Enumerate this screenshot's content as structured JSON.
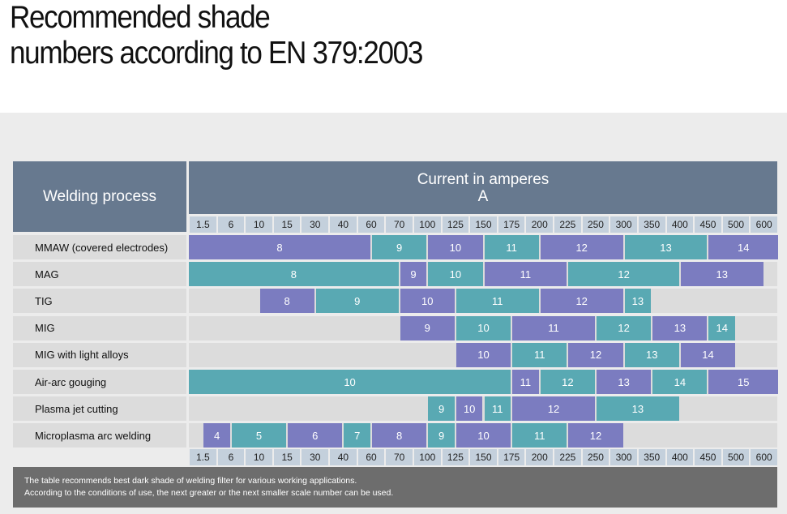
{
  "title": {
    "line1": "Recommended shade",
    "line2": "numbers according to EN 379:2003"
  },
  "table": {
    "process_header": "Welding process",
    "current_header_line1": "Current in amperes",
    "current_header_line2": "A",
    "scale": [
      "1.5",
      "6",
      "10",
      "15",
      "30",
      "40",
      "60",
      "70",
      "100",
      "125",
      "150",
      "175",
      "200",
      "225",
      "250",
      "300",
      "350",
      "400",
      "450",
      "500",
      "600"
    ],
    "colors": {
      "purple": "#7b7cc0",
      "teal": "#59a9b3",
      "row_bg": "#dcdcdc",
      "header": "#67798f",
      "scale_bg": "#c4d0dc"
    },
    "rows": [
      {
        "label": "MMAW (covered electrodes)",
        "segments": [
          {
            "shade": "8",
            "from": 0,
            "to": 6.5,
            "color": "purple"
          },
          {
            "shade": "9",
            "from": 6.5,
            "to": 8.5,
            "color": "teal"
          },
          {
            "shade": "10",
            "from": 8.5,
            "to": 10.5,
            "color": "purple"
          },
          {
            "shade": "11",
            "from": 10.5,
            "to": 12.5,
            "color": "teal"
          },
          {
            "shade": "12",
            "from": 12.5,
            "to": 15.5,
            "color": "purple"
          },
          {
            "shade": "13",
            "from": 15.5,
            "to": 18.5,
            "color": "teal"
          },
          {
            "shade": "14",
            "from": 18.5,
            "to": 21,
            "color": "purple"
          }
        ]
      },
      {
        "label": "MAG",
        "segments": [
          {
            "shade": "8",
            "from": 0,
            "to": 7.5,
            "color": "teal"
          },
          {
            "shade": "9",
            "from": 7.5,
            "to": 8.5,
            "color": "purple"
          },
          {
            "shade": "10",
            "from": 8.5,
            "to": 10.5,
            "color": "teal"
          },
          {
            "shade": "11",
            "from": 10.5,
            "to": 13.5,
            "color": "purple"
          },
          {
            "shade": "12",
            "from": 13.5,
            "to": 17.5,
            "color": "teal"
          },
          {
            "shade": "13",
            "from": 17.5,
            "to": 20.5,
            "color": "purple"
          }
        ]
      },
      {
        "label": "TIG",
        "segments": [
          {
            "shade": "8",
            "from": 2.5,
            "to": 4.5,
            "color": "purple"
          },
          {
            "shade": "9",
            "from": 4.5,
            "to": 7.5,
            "color": "teal"
          },
          {
            "shade": "10",
            "from": 7.5,
            "to": 9.5,
            "color": "purple"
          },
          {
            "shade": "11",
            "from": 9.5,
            "to": 12.5,
            "color": "teal"
          },
          {
            "shade": "12",
            "from": 12.5,
            "to": 15.5,
            "color": "purple"
          },
          {
            "shade": "13",
            "from": 15.5,
            "to": 16.5,
            "color": "teal"
          }
        ]
      },
      {
        "label": "MIG",
        "segments": [
          {
            "shade": "9",
            "from": 7.5,
            "to": 9.5,
            "color": "purple"
          },
          {
            "shade": "10",
            "from": 9.5,
            "to": 11.5,
            "color": "teal"
          },
          {
            "shade": "11",
            "from": 11.5,
            "to": 14.5,
            "color": "purple"
          },
          {
            "shade": "12",
            "from": 14.5,
            "to": 16.5,
            "color": "teal"
          },
          {
            "shade": "13",
            "from": 16.5,
            "to": 18.5,
            "color": "purple"
          },
          {
            "shade": "14",
            "from": 18.5,
            "to": 19.5,
            "color": "teal"
          }
        ]
      },
      {
        "label": "MIG with light alloys",
        "segments": [
          {
            "shade": "10",
            "from": 9.5,
            "to": 11.5,
            "color": "purple"
          },
          {
            "shade": "11",
            "from": 11.5,
            "to": 13.5,
            "color": "teal"
          },
          {
            "shade": "12",
            "from": 13.5,
            "to": 15.5,
            "color": "purple"
          },
          {
            "shade": "13",
            "from": 15.5,
            "to": 17.5,
            "color": "teal"
          },
          {
            "shade": "14",
            "from": 17.5,
            "to": 19.5,
            "color": "purple"
          }
        ]
      },
      {
        "label": "Air-arc gouging",
        "segments": [
          {
            "shade": "10",
            "from": 0,
            "to": 11.5,
            "color": "teal"
          },
          {
            "shade": "11",
            "from": 11.5,
            "to": 12.5,
            "color": "purple"
          },
          {
            "shade": "12",
            "from": 12.5,
            "to": 14.5,
            "color": "teal"
          },
          {
            "shade": "13",
            "from": 14.5,
            "to": 16.5,
            "color": "purple"
          },
          {
            "shade": "14",
            "from": 16.5,
            "to": 18.5,
            "color": "teal"
          },
          {
            "shade": "15",
            "from": 18.5,
            "to": 21,
            "color": "purple"
          }
        ]
      },
      {
        "label": "Plasma jet cutting",
        "segments": [
          {
            "shade": "9",
            "from": 8.5,
            "to": 9.5,
            "color": "teal"
          },
          {
            "shade": "10",
            "from": 9.5,
            "to": 10.5,
            "color": "purple"
          },
          {
            "shade": "11",
            "from": 10.5,
            "to": 11.5,
            "color": "teal"
          },
          {
            "shade": "12",
            "from": 11.5,
            "to": 14.5,
            "color": "purple"
          },
          {
            "shade": "13",
            "from": 14.5,
            "to": 17.5,
            "color": "teal"
          }
        ]
      },
      {
        "label": "Microplasma arc welding",
        "segments": [
          {
            "shade": "4",
            "from": 0.5,
            "to": 1.5,
            "color": "purple"
          },
          {
            "shade": "5",
            "from": 1.5,
            "to": 3.5,
            "color": "teal"
          },
          {
            "shade": "6",
            "from": 3.5,
            "to": 5.5,
            "color": "purple"
          },
          {
            "shade": "7",
            "from": 5.5,
            "to": 6.5,
            "color": "teal"
          },
          {
            "shade": "8",
            "from": 6.5,
            "to": 8.5,
            "color": "purple"
          },
          {
            "shade": "9",
            "from": 8.5,
            "to": 9.5,
            "color": "teal"
          },
          {
            "shade": "10",
            "from": 9.5,
            "to": 11.5,
            "color": "purple"
          },
          {
            "shade": "11",
            "from": 11.5,
            "to": 13.5,
            "color": "teal"
          },
          {
            "shade": "12",
            "from": 13.5,
            "to": 15.5,
            "color": "purple"
          }
        ]
      }
    ],
    "footnote": {
      "line1": "The table recommends best dark shade of welding filter for various working applications.",
      "line2": "According to the conditions of use, the next greater or the next smaller scale number can be used."
    }
  }
}
